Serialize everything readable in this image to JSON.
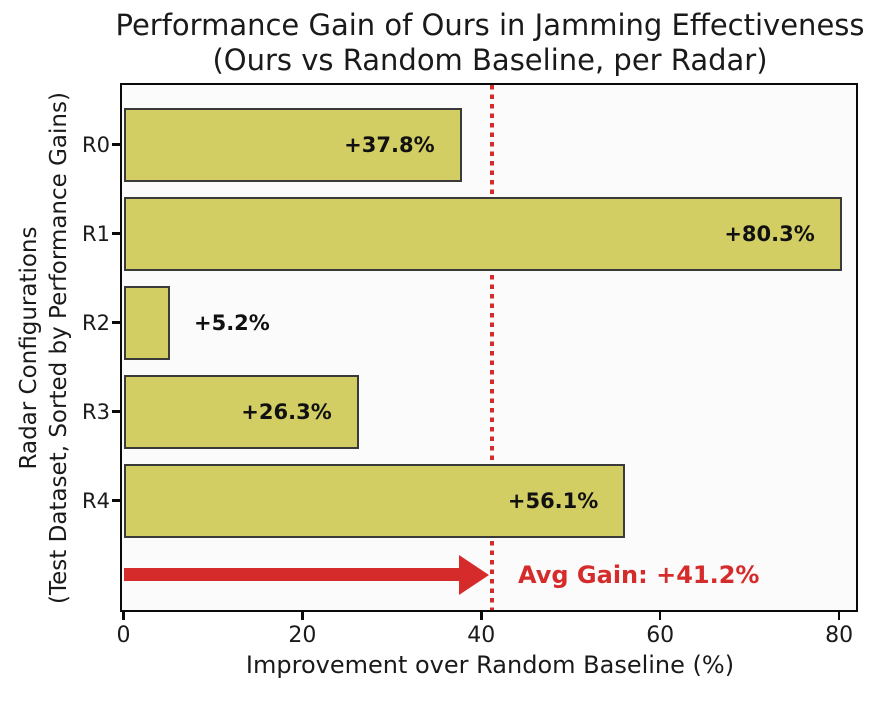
{
  "title": {
    "line1": "Performance Gain of Ours in Jamming Effectiveness",
    "line2": "(Ours vs Random Baseline, per Radar)"
  },
  "chart_data": {
    "type": "bar",
    "orientation": "horizontal",
    "title": "Performance Gain of Ours in Jamming Effectiveness\n(Ours vs Random Baseline, per Radar)",
    "categories": [
      "R0",
      "R1",
      "R2",
      "R3",
      "R4"
    ],
    "values": [
      37.8,
      80.3,
      5.2,
      26.3,
      56.1
    ],
    "bar_labels": [
      "+37.8%",
      "+80.3%",
      "+5.2%",
      "+26.3%",
      "+56.1%"
    ],
    "xlabel": "Improvement over Random Baseline (%)",
    "ylabel_lines": [
      "Radar Configurations",
      "(Test Dataset, Sorted by Performance Gains)"
    ],
    "xlim": [
      0,
      82
    ],
    "x_tick_values": [
      0,
      20,
      40,
      60,
      80
    ],
    "x_tick_labels": [
      "0",
      "20",
      "40",
      "60",
      "80"
    ],
    "grid": false,
    "legend": null,
    "avg_line": {
      "value": 41.2,
      "label": "Avg Gain: +41.2%",
      "style": "dotted"
    },
    "colors": {
      "bar_fill": "#d2ce64",
      "bar_edge": "#3a3a3a",
      "accent_red": "#d62b2b",
      "plot_bg": "#fbfbfb",
      "spine": "#0a0a0a",
      "text": "#1a1a1a"
    }
  }
}
